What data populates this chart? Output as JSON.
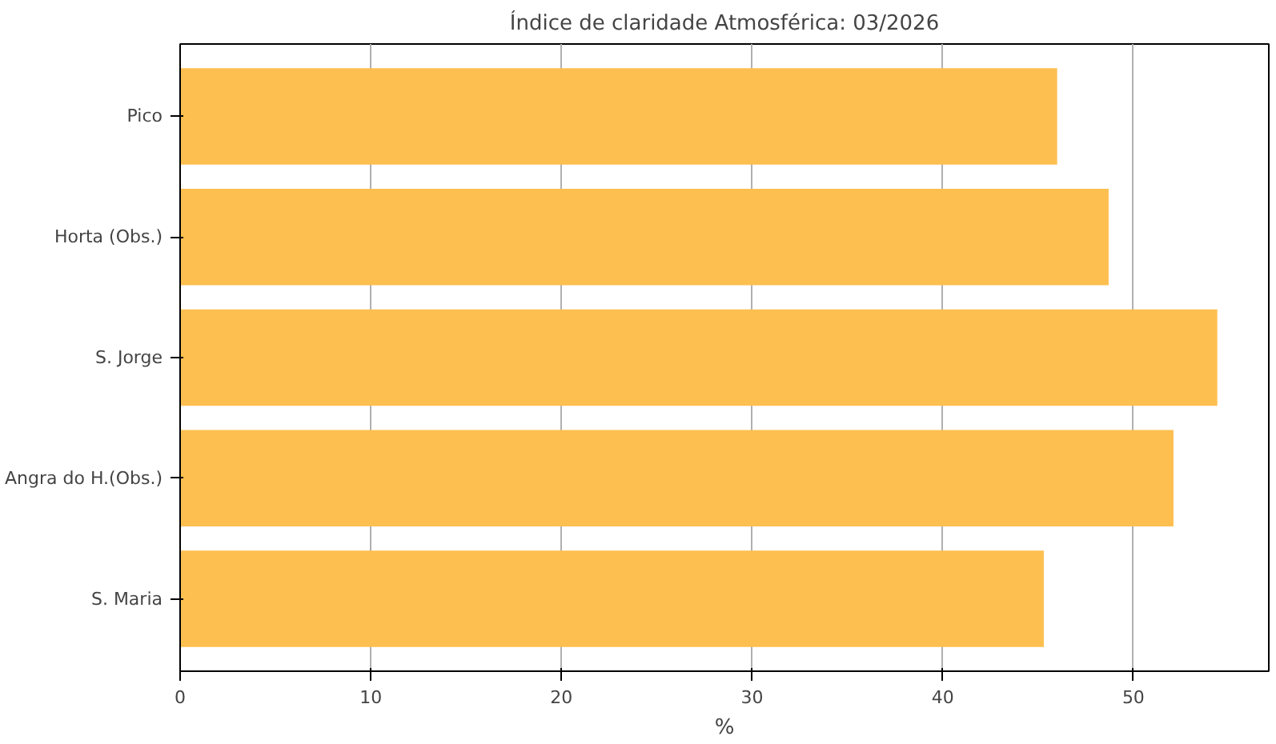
{
  "chart_data": {
    "type": "bar",
    "orientation": "horizontal",
    "title": "Índice de claridade Atmosférica: 03/2026",
    "xlabel": "%",
    "categories": [
      "Pico",
      "Horta (Obs.)",
      "S. Jorge",
      "Angra do H.(Obs.)",
      "S. Maria"
    ],
    "values": [
      46.0,
      48.7,
      54.4,
      52.1,
      45.3
    ],
    "color": "#fdbf4f",
    "xlim": [
      0,
      57.1
    ],
    "xticks": [
      0,
      10,
      20,
      30,
      40,
      50
    ],
    "grid": "x"
  }
}
